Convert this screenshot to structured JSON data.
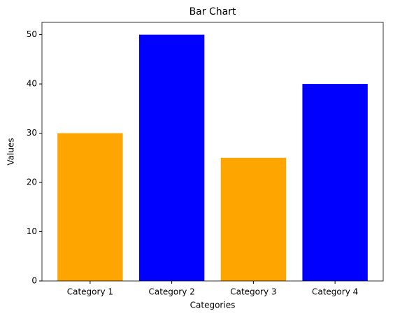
{
  "chart_data": {
    "type": "bar",
    "title": "Bar Chart",
    "x_label": "Categories",
    "y_label": "Values",
    "categories": [
      "Category 1",
      "Category 2",
      "Category 3",
      "Category 4"
    ],
    "values": [
      30,
      50,
      25,
      40
    ],
    "colors": [
      "orange",
      "blue",
      "orange",
      "blue"
    ],
    "ylim": [
      0,
      52.5
    ],
    "yticks": [
      0,
      10,
      20,
      30,
      40,
      50
    ],
    "grid": false
  }
}
